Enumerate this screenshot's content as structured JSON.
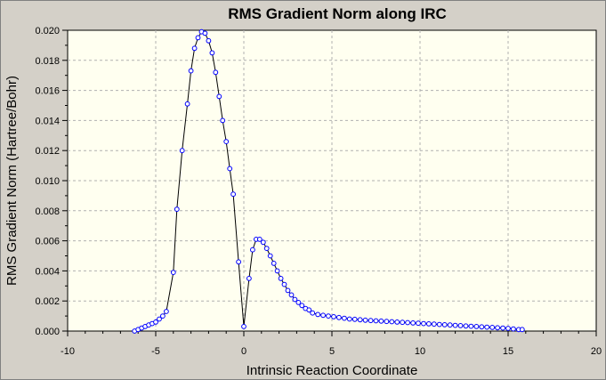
{
  "chart_data": {
    "type": "line",
    "title": "RMS Gradient Norm along IRC",
    "xlabel": "Intrinsic Reaction Coordinate",
    "ylabel": "RMS Gradient Norm (Hartree/Bohr)",
    "xlim": [
      -10,
      20
    ],
    "ylim": [
      0,
      0.02
    ],
    "x_ticks": [
      "-10",
      "-5",
      "0",
      "5",
      "10",
      "15",
      "20"
    ],
    "y_ticks": [
      "0.000",
      "0.002",
      "0.004",
      "0.006",
      "0.008",
      "0.010",
      "0.012",
      "0.014",
      "0.016",
      "0.018",
      "0.020"
    ],
    "grid": true,
    "series": [
      {
        "markers": "circle",
        "points": [
          [
            -6.2,
            0.0
          ],
          [
            -6.0,
            0.0001
          ],
          [
            -5.8,
            0.0002
          ],
          [
            -5.6,
            0.0003
          ],
          [
            -5.4,
            0.0004
          ],
          [
            -5.2,
            0.0005
          ],
          [
            -5.0,
            0.0006
          ],
          [
            -4.8,
            0.0008
          ],
          [
            -4.6,
            0.001
          ],
          [
            -4.4,
            0.0013
          ],
          [
            -4.0,
            0.0039
          ],
          [
            -3.8,
            0.0081
          ],
          [
            -3.5,
            0.012
          ],
          [
            -3.2,
            0.0151
          ],
          [
            -3.0,
            0.0173
          ],
          [
            -2.8,
            0.0188
          ],
          [
            -2.6,
            0.0195
          ],
          [
            -2.4,
            0.0199
          ],
          [
            -2.2,
            0.0198
          ],
          [
            -2.0,
            0.0193
          ],
          [
            -1.8,
            0.0185
          ],
          [
            -1.6,
            0.0172
          ],
          [
            -1.4,
            0.0156
          ],
          [
            -1.2,
            0.014
          ],
          [
            -1.0,
            0.0126
          ],
          [
            -0.8,
            0.0108
          ],
          [
            -0.6,
            0.0091
          ],
          [
            -0.3,
            0.0046
          ],
          [
            0.0,
            0.0003
          ],
          [
            0.3,
            0.0035
          ],
          [
            0.5,
            0.0054
          ],
          [
            0.7,
            0.0061
          ],
          [
            0.9,
            0.0061
          ],
          [
            1.1,
            0.0059
          ],
          [
            1.3,
            0.0055
          ],
          [
            1.5,
            0.005
          ],
          [
            1.7,
            0.0045
          ],
          [
            1.9,
            0.004
          ],
          [
            2.1,
            0.0035
          ],
          [
            2.3,
            0.0031
          ],
          [
            2.5,
            0.0027
          ],
          [
            2.7,
            0.0024
          ],
          [
            2.9,
            0.0021
          ],
          [
            3.1,
            0.0019
          ],
          [
            3.3,
            0.0017
          ],
          [
            3.5,
            0.0015
          ],
          [
            3.7,
            0.0014
          ],
          [
            3.9,
            0.0012
          ],
          [
            4.2,
            0.0011
          ],
          [
            4.5,
            0.00105
          ],
          [
            4.8,
            0.001
          ],
          [
            5.1,
            0.00095
          ],
          [
            5.4,
            0.0009
          ],
          [
            5.7,
            0.00085
          ],
          [
            6.0,
            0.0008
          ],
          [
            6.3,
            0.00078
          ],
          [
            6.6,
            0.00075
          ],
          [
            6.9,
            0.00072
          ],
          [
            7.2,
            0.0007
          ],
          [
            7.5,
            0.00068
          ],
          [
            7.8,
            0.00066
          ],
          [
            8.1,
            0.00064
          ],
          [
            8.4,
            0.00062
          ],
          [
            8.7,
            0.0006
          ],
          [
            9.0,
            0.00058
          ],
          [
            9.3,
            0.00056
          ],
          [
            9.6,
            0.00054
          ],
          [
            9.9,
            0.00052
          ],
          [
            10.2,
            0.0005
          ],
          [
            10.5,
            0.00048
          ],
          [
            10.8,
            0.00046
          ],
          [
            11.1,
            0.00044
          ],
          [
            11.4,
            0.00042
          ],
          [
            11.7,
            0.0004
          ],
          [
            12.0,
            0.00038
          ],
          [
            12.3,
            0.00036
          ],
          [
            12.6,
            0.00034
          ],
          [
            12.9,
            0.00032
          ],
          [
            13.2,
            0.0003
          ],
          [
            13.5,
            0.00028
          ],
          [
            13.8,
            0.00026
          ],
          [
            14.1,
            0.00024
          ],
          [
            14.4,
            0.00022
          ],
          [
            14.7,
            0.0002
          ],
          [
            15.0,
            0.00018
          ],
          [
            15.3,
            0.00014
          ],
          [
            15.6,
            0.0001
          ],
          [
            15.8,
            0.0001
          ]
        ]
      }
    ],
    "colors": {
      "background": "#d4d0c8",
      "plot_area": "#fffff0",
      "line": "#000000",
      "marker_edge": "#0000ff",
      "grid": "#b0b0b0"
    }
  }
}
